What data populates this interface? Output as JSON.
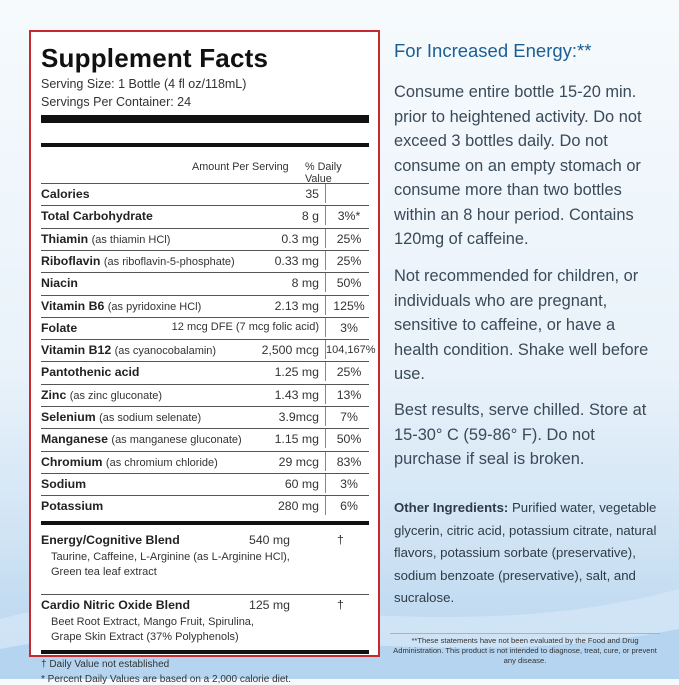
{
  "panel": {
    "title": "Supplement Facts",
    "serving_size": "Serving Size: 1 Bottle (4 fl oz/118mL)",
    "servings_per_container": "Servings Per Container: 24",
    "col_amount": "Amount Per Serving",
    "col_dv": "% Daily Value",
    "rows": [
      {
        "name": "Calories",
        "source": "",
        "amount": "35",
        "dv": ""
      },
      {
        "name": "Total Carbohydrate",
        "source": "",
        "amount": "8 g",
        "dv": "3%*"
      },
      {
        "name": "Thiamin",
        "source": "(as thiamin HCl)",
        "amount": "0.3 mg",
        "dv": "25%"
      },
      {
        "name": "Riboflavin",
        "source": "(as riboflavin-5-phosphate)",
        "amount": "0.33 mg",
        "dv": "25%"
      },
      {
        "name": "Niacin",
        "source": "",
        "amount": "8 mg",
        "dv": "50%"
      },
      {
        "name": "Vitamin B6",
        "source": "(as pyridoxine HCl)",
        "amount": "2.13 mg",
        "dv": "125%"
      },
      {
        "name": "Folate",
        "source": "",
        "amount": "12 mcg DFE (7 mcg folic acid)",
        "dv": "3%"
      },
      {
        "name": "Vitamin B12",
        "source": "(as cyanocobalamin)",
        "amount": "2,500 mcg",
        "dv": "104,167%"
      },
      {
        "name": "Pantothenic acid",
        "source": "",
        "amount": "1.25 mg",
        "dv": "25%"
      },
      {
        "name": "Zinc",
        "source": "(as zinc gluconate)",
        "amount": "1.43 mg",
        "dv": "13%"
      },
      {
        "name": "Selenium",
        "source": "(as sodium selenate)",
        "amount": "3.9mcg",
        "dv": "7%"
      },
      {
        "name": "Manganese",
        "source": "(as manganese gluconate)",
        "amount": "1.15 mg",
        "dv": "50%"
      },
      {
        "name": "Chromium",
        "source": "(as chromium chloride)",
        "amount": "29 mcg",
        "dv": "83%"
      },
      {
        "name": "Sodium",
        "source": "",
        "amount": "60 mg",
        "dv": "3%"
      },
      {
        "name": "Potassium",
        "source": "",
        "amount": "280 mg",
        "dv": "6%"
      }
    ],
    "blends": [
      {
        "name": "Energy/Cognitive Blend",
        "amount": "540 mg",
        "dv": "†",
        "ingredients": [
          "Taurine, Caffeine, L-Arginine (as L-Arginine HCl),",
          "Green tea leaf extract"
        ]
      },
      {
        "name": "Cardio Nitric Oxide Blend",
        "amount": "125 mg",
        "dv": "†",
        "ingredients": [
          "Beet Root Extract, Mango Fruit, Spirulina,",
          "Grape Skin Extract (37% Polyphenols)"
        ]
      }
    ],
    "footnote_1": "† Daily Value not established",
    "footnote_2": "* Percent Daily Values are based on a 2,000 calorie diet."
  },
  "info": {
    "heading": "For Increased Energy:**",
    "para_1": "Consume entire bottle 15-20 min. prior to heightened activity. Do not exceed 3 bottles daily. Do not consume on an empty stomach or consume more than two bottles within an 8 hour period. Contains 120mg of caffeine.",
    "para_2": "Not recommended for children, or individuals who are pregnant, sensitive to caffeine, or have a health condition. Shake well before use.",
    "para_3": "Best results, serve chilled. Store at 15-30° C (59-86° F). Do not purchase if seal is broken.",
    "other_label": "Other Ingredients:",
    "other_text": " Purified water, vegetable glycerin, citric acid, potassium citrate, natural flavors, potassium sorbate (preservative), sodium benzoate (preservative), salt, and sucralose.",
    "disclaimer": "**These statements have not been evaluated by the Food and Drug Administration. This product is not intended to diagnose, treat, cure, or prevent any disease."
  },
  "colors": {
    "border": "#c62a2f",
    "heading": "#1c5e94",
    "background_wave": "#b4d3ee"
  }
}
